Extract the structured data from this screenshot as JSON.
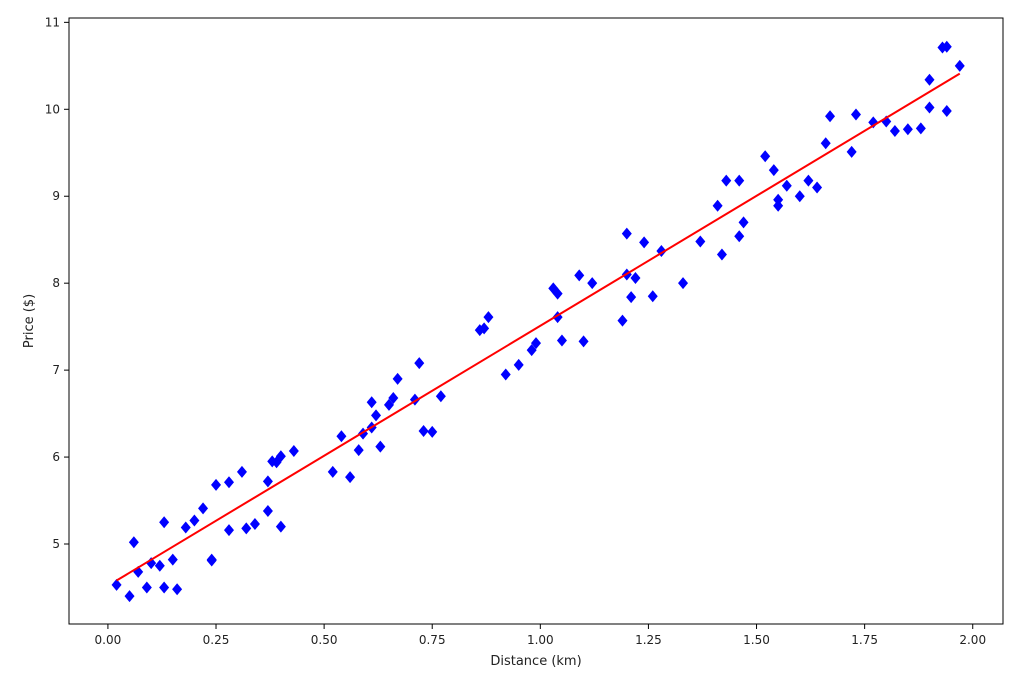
{
  "chart_data": {
    "type": "scatter",
    "title": "",
    "xlabel": "Distance (km)",
    "ylabel": "Price ($)",
    "xlim": [
      -0.09,
      2.07
    ],
    "ylim": [
      4.08,
      11.05
    ],
    "xticks": [
      0.0,
      0.25,
      0.5,
      0.75,
      1.0,
      1.25,
      1.5,
      1.75,
      2.0
    ],
    "xtick_labels": [
      "0.00",
      "0.25",
      "0.50",
      "0.75",
      "1.00",
      "1.25",
      "1.50",
      "1.75",
      "2.00"
    ],
    "yticks": [
      5,
      6,
      7,
      8,
      9,
      10,
      11
    ],
    "ytick_labels": [
      "5",
      "6",
      "7",
      "8",
      "9",
      "10",
      "11"
    ],
    "grid": false,
    "legend": "none",
    "series": [
      {
        "kind": "scatter",
        "marker": "diamond",
        "color": "#0000ff",
        "x": [
          0.02,
          0.05,
          0.06,
          0.07,
          0.09,
          0.1,
          0.12,
          0.13,
          0.13,
          0.15,
          0.16,
          0.18,
          0.2,
          0.22,
          0.24,
          0.24,
          0.25,
          0.28,
          0.28,
          0.31,
          0.32,
          0.34,
          0.37,
          0.37,
          0.38,
          0.39,
          0.4,
          0.4,
          0.43,
          0.52,
          0.54,
          0.56,
          0.58,
          0.59,
          0.61,
          0.61,
          0.62,
          0.63,
          0.65,
          0.66,
          0.67,
          0.71,
          0.72,
          0.73,
          0.75,
          0.77,
          0.86,
          0.87,
          0.88,
          0.92,
          0.95,
          0.98,
          0.99,
          1.03,
          1.04,
          1.04,
          1.05,
          1.09,
          1.1,
          1.12,
          1.19,
          1.2,
          1.2,
          1.21,
          1.22,
          1.24,
          1.26,
          1.28,
          1.33,
          1.37,
          1.41,
          1.42,
          1.43,
          1.46,
          1.46,
          1.47,
          1.52,
          1.54,
          1.55,
          1.55,
          1.57,
          1.6,
          1.62,
          1.64,
          1.66,
          1.67,
          1.72,
          1.73,
          1.77,
          1.8,
          1.82,
          1.85,
          1.88,
          1.9,
          1.9,
          1.93,
          1.94,
          1.94,
          1.97
        ],
        "y": [
          4.53,
          4.4,
          5.02,
          4.68,
          4.5,
          4.78,
          4.75,
          5.25,
          4.5,
          4.82,
          4.48,
          5.19,
          5.27,
          5.41,
          4.81,
          4.82,
          5.68,
          5.71,
          5.16,
          5.83,
          5.18,
          5.23,
          5.38,
          5.72,
          5.95,
          5.94,
          6.01,
          5.2,
          6.07,
          5.83,
          6.24,
          5.77,
          6.08,
          6.27,
          6.34,
          6.63,
          6.48,
          6.12,
          6.6,
          6.68,
          6.9,
          6.66,
          7.08,
          6.3,
          6.29,
          6.7,
          7.46,
          7.48,
          7.61,
          6.95,
          7.06,
          7.23,
          7.31,
          7.94,
          7.61,
          7.88,
          7.34,
          8.09,
          7.33,
          8.0,
          7.57,
          8.57,
          8.1,
          7.84,
          8.06,
          8.47,
          7.85,
          8.37,
          8.0,
          8.48,
          8.89,
          8.33,
          9.18,
          9.18,
          8.54,
          8.7,
          9.46,
          9.3,
          8.96,
          8.89,
          9.12,
          9.0,
          9.18,
          9.1,
          9.61,
          9.92,
          9.51,
          9.94,
          9.85,
          9.86,
          9.75,
          9.77,
          9.78,
          10.02,
          10.34,
          10.71,
          10.72,
          9.98,
          10.5
        ]
      },
      {
        "kind": "line",
        "color": "#ff0000",
        "x": [
          0.02,
          1.97
        ],
        "y": [
          4.58,
          10.41
        ]
      }
    ]
  }
}
